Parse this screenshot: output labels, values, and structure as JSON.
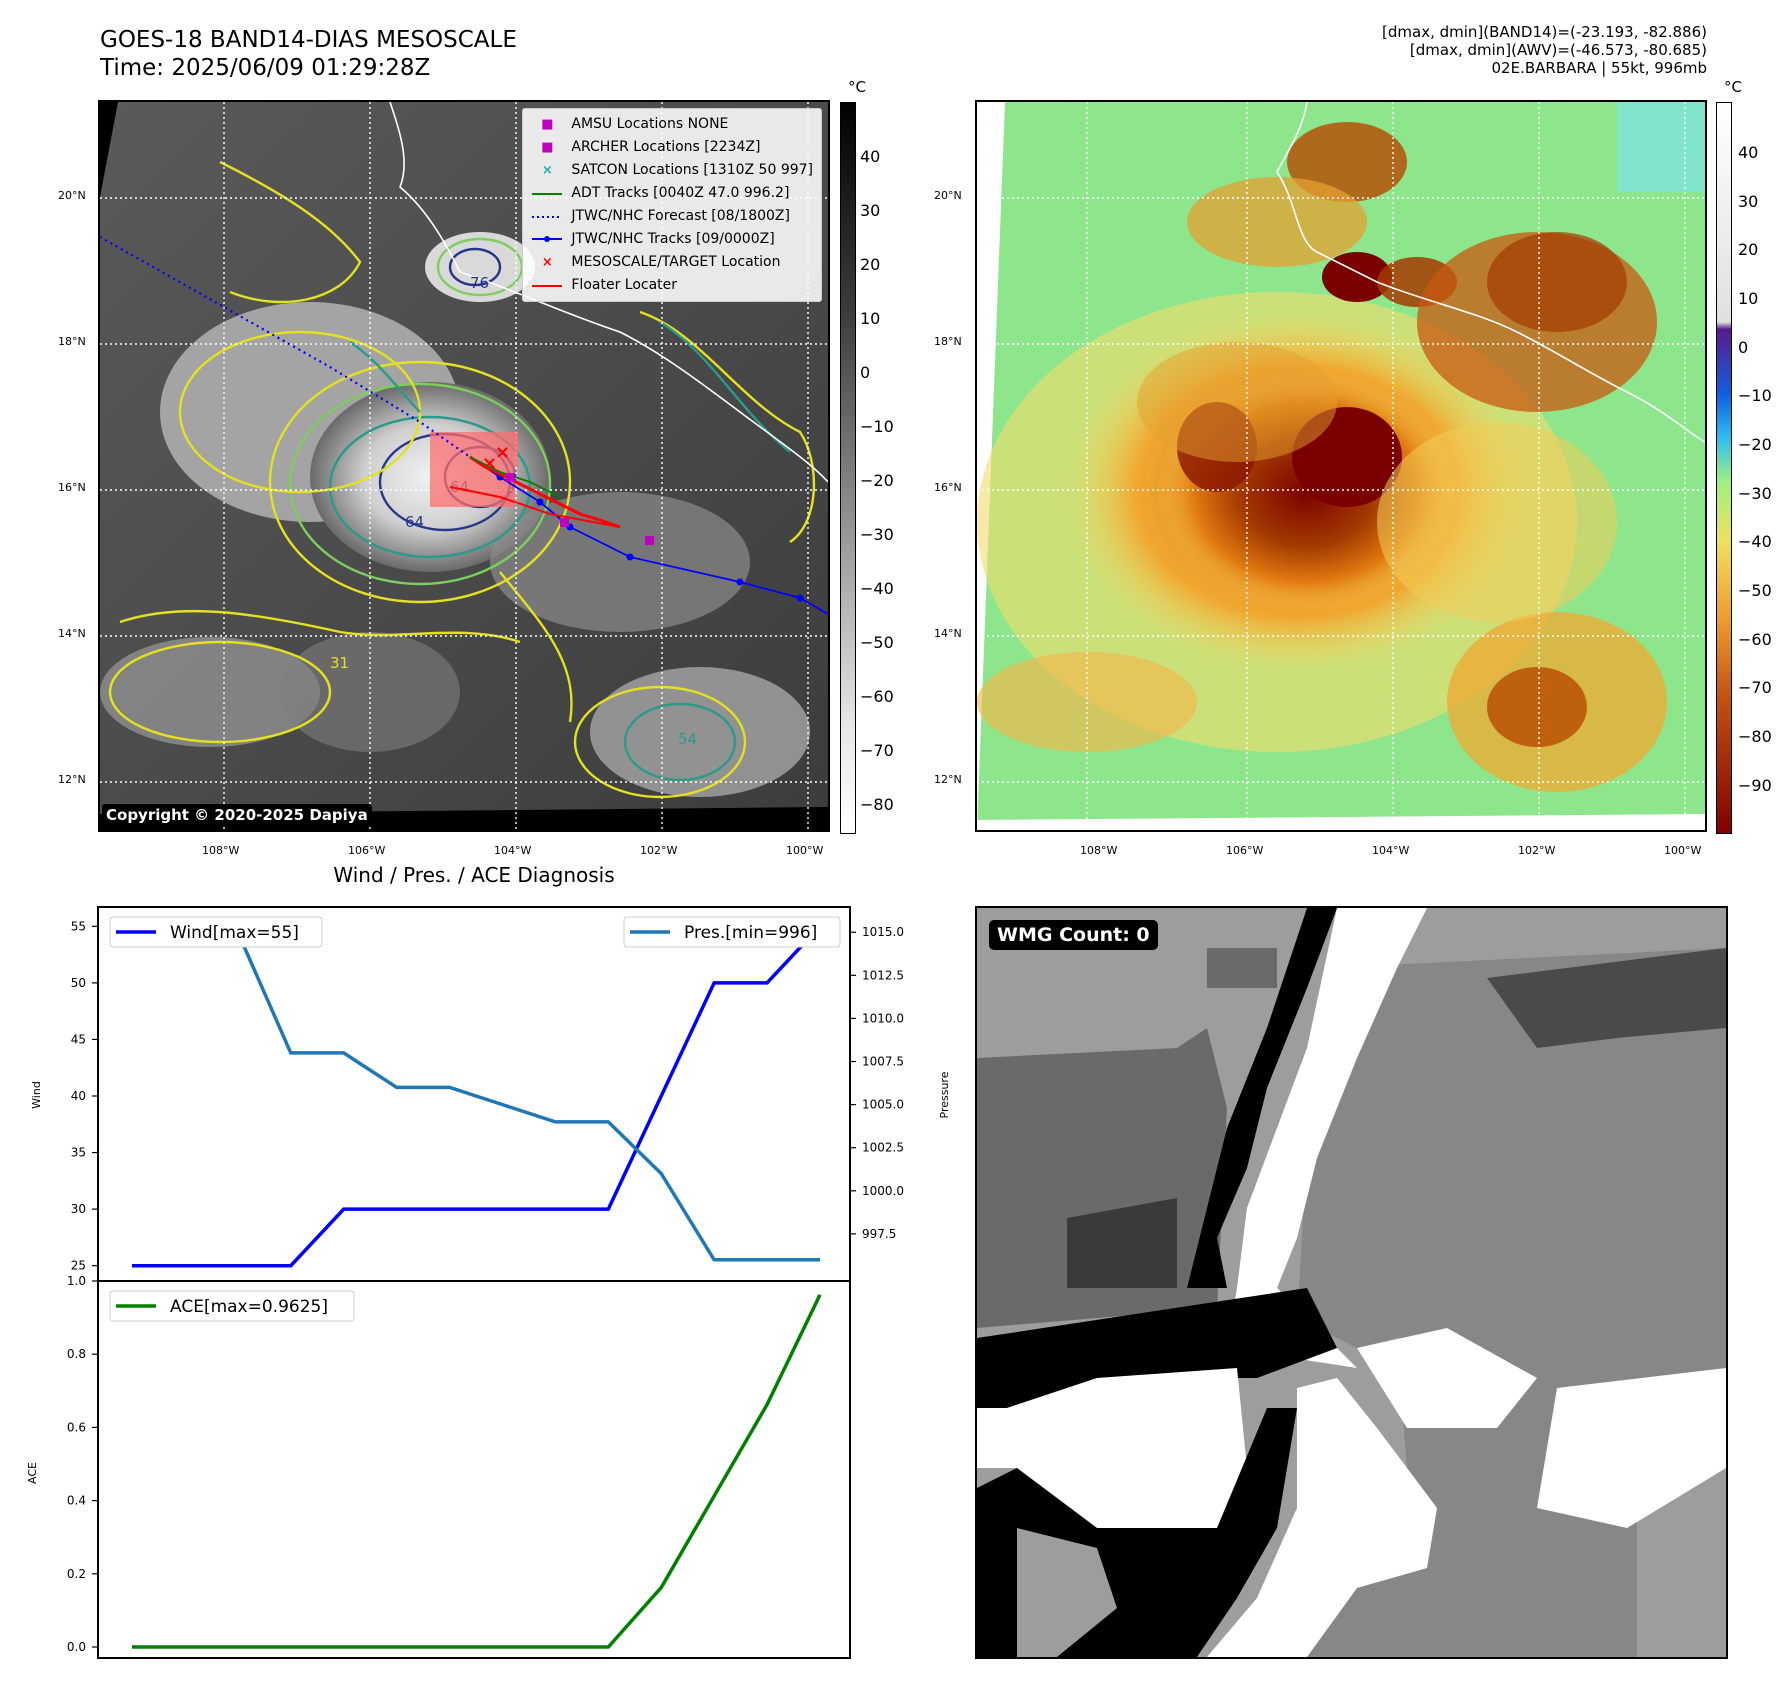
{
  "header": {
    "title_line1": "GOES-18 BAND14-DIAS MESOSCALE",
    "title_line2": "Time: 2025/06/09 01:29:28Z",
    "info_line1": "[dmax, dmin](BAND14)=(-23.193, -82.886)",
    "info_line2": "[dmax, dmin](AWV)=(-46.573, -80.685)",
    "info_line3": "02E.BARBARA | 55kt, 996mb"
  },
  "map_left": {
    "unit": "°C",
    "lat_ticks": [
      "20°N",
      "18°N",
      "16°N",
      "14°N",
      "12°N"
    ],
    "lon_ticks": [
      "108°W",
      "106°W",
      "104°W",
      "102°W",
      "100°W"
    ],
    "colorbar_ticks": [
      "40",
      "30",
      "20",
      "10",
      "0",
      "−10",
      "−20",
      "−30",
      "−40",
      "−50",
      "−60",
      "−70",
      "−80"
    ],
    "copyright": "Copyright © 2020-2025 Dapiya",
    "contour_labels": [
      "76",
      "64",
      "54",
      "64",
      "31"
    ],
    "legend": [
      {
        "label": "AMSU Locations NONE",
        "symbol": "■",
        "color": "#c000c0"
      },
      {
        "label": "ARCHER Locations [2234Z]",
        "symbol": "■",
        "color": "#c000c0"
      },
      {
        "label": "SATCON Locations [1310Z 50 997]",
        "symbol": "×",
        "color": "#20b0b0"
      },
      {
        "label": "ADT Tracks [0040Z 47.0 996.2]",
        "symbol": "line",
        "color": "#008000"
      },
      {
        "label": "JTWC/NHC Forecast [08/1800Z]",
        "symbol": "dotted",
        "color": "#0000ff"
      },
      {
        "label": "JTWC/NHC Tracks [09/0000Z]",
        "symbol": "dotline",
        "color": "#0000ff"
      },
      {
        "label": "MESOSCALE/TARGET Location",
        "symbol": "×",
        "color": "#ff0000"
      },
      {
        "label": "Floater Locater",
        "symbol": "line",
        "color": "#ff0000"
      }
    ]
  },
  "map_right": {
    "unit": "°C",
    "lat_ticks": [
      "20°N",
      "18°N",
      "16°N",
      "14°N",
      "12°N"
    ],
    "lon_ticks": [
      "108°W",
      "106°W",
      "104°W",
      "102°W",
      "100°W"
    ],
    "colorbar_ticks": [
      "40",
      "30",
      "20",
      "10",
      "0",
      "−10",
      "−20",
      "−30",
      "−40",
      "−50",
      "−60",
      "−70",
      "−80",
      "−90"
    ]
  },
  "diagnosis": {
    "title": "Wind / Pres. / ACE Diagnosis",
    "wind_ylabel": "Wind",
    "pres_ylabel": "Pressure",
    "ace_ylabel": "ACE",
    "wind_ticks": [
      "55",
      "50",
      "45",
      "40",
      "35",
      "30",
      "25"
    ],
    "pres_ticks": [
      "1015.0",
      "1012.5",
      "1010.0",
      "1007.5",
      "1005.0",
      "1002.5",
      "1000.0",
      "997.5"
    ],
    "ace_ticks": [
      "1.0",
      "0.8",
      "0.6",
      "0.4",
      "0.2",
      "0.0"
    ],
    "wind_legend": "Wind[max=55]",
    "pres_legend": "Pres.[min=996]",
    "ace_legend": "ACE[max=0.9625]",
    "wind_color": "#0000ff",
    "pres_color": "#1f77b4",
    "ace_color": "#008000"
  },
  "wmg": {
    "label": "WMG Count: 0"
  },
  "chart_data": [
    {
      "type": "line",
      "title": "Wind / Pres. / ACE Diagnosis",
      "x": [
        0,
        1,
        2,
        3,
        4,
        5,
        6,
        7,
        8,
        9,
        10,
        11,
        12,
        13
      ],
      "series": [
        {
          "name": "Wind[max=55]",
          "axis": "left",
          "values": [
            25,
            25,
            25,
            25,
            30,
            30,
            30,
            30,
            30,
            30,
            40,
            50,
            50,
            55
          ]
        },
        {
          "name": "Pres.[min=996]",
          "axis": "right",
          "values": [
            1015,
            1015,
            1015,
            1008,
            1008,
            1006,
            1006,
            1005,
            1004,
            1004,
            1001,
            996,
            996,
            996
          ]
        }
      ],
      "ylabel": "Wind",
      "ylabel_right": "Pressure",
      "ylim": [
        24,
        56
      ],
      "ylim_right": [
        995,
        1016
      ]
    },
    {
      "type": "line",
      "x": [
        0,
        1,
        2,
        3,
        4,
        5,
        6,
        7,
        8,
        9,
        10,
        11,
        12,
        13
      ],
      "series": [
        {
          "name": "ACE[max=0.9625]",
          "values": [
            0,
            0,
            0,
            0,
            0,
            0,
            0,
            0,
            0,
            0,
            0.1625,
            0.4125,
            0.6625,
            0.9625
          ]
        }
      ],
      "ylabel": "ACE",
      "ylim": [
        -0.03,
        1.0
      ]
    }
  ]
}
